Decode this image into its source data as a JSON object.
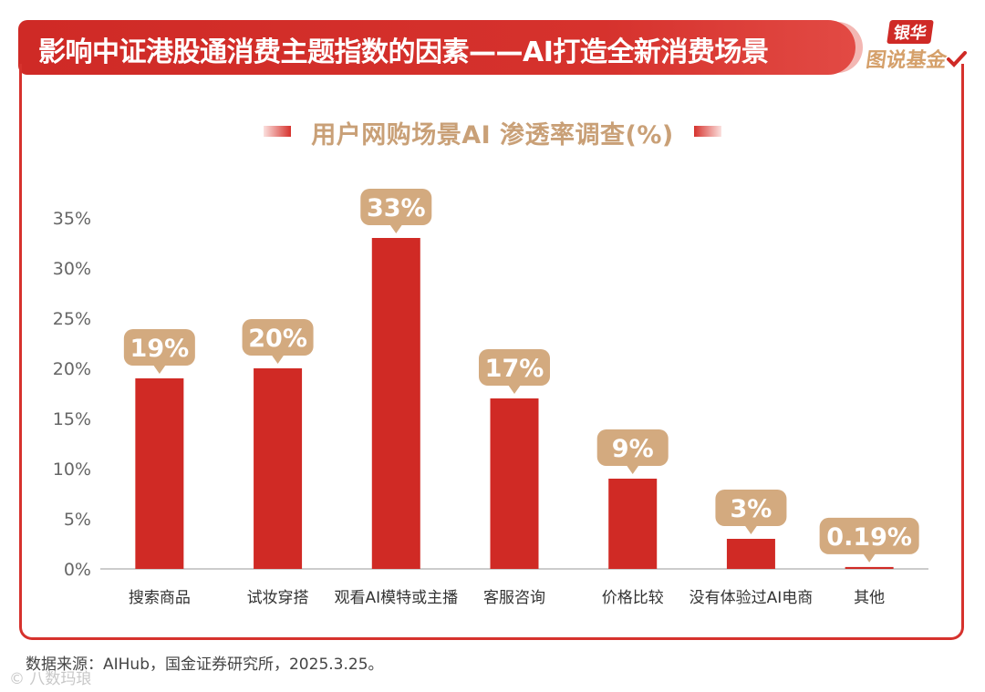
{
  "header": {
    "title": "影响中证港股通消费主题指数的因素——AI打造全新消费场景"
  },
  "logo": {
    "line1": "银华",
    "line2": "图说基金"
  },
  "footer": {
    "source": "数据来源：AIHub，国金证券研究所，2025.3.25。"
  },
  "watermark": {
    "text": "© 八数玛琅"
  },
  "colors": {
    "bar": "#d02a25",
    "label_bg": "#d3aa7f",
    "axis_text": "#666666",
    "header": "#cf2a26"
  },
  "chart_data": {
    "type": "bar",
    "title": "用户网购场景AI 渗透率调查(%)",
    "categories": [
      "搜索商品",
      "试妆穿搭",
      "观看AI模特或主播",
      "客服咨询",
      "价格比较",
      "没有体验过AI电商",
      "其他"
    ],
    "values": [
      19,
      20,
      33,
      17,
      9,
      3,
      0.19
    ],
    "data_labels": [
      "19%",
      "20%",
      "33%",
      "17%",
      "9%",
      "3%",
      "0.19%"
    ],
    "ylim": [
      0,
      35
    ],
    "yticks": [
      0,
      5,
      10,
      15,
      20,
      25,
      30,
      35
    ],
    "ytick_labels": [
      "0%",
      "5%",
      "10%",
      "15%",
      "20%",
      "25%",
      "30%",
      "35%"
    ],
    "xlabel": "",
    "ylabel": "",
    "grid": false
  }
}
